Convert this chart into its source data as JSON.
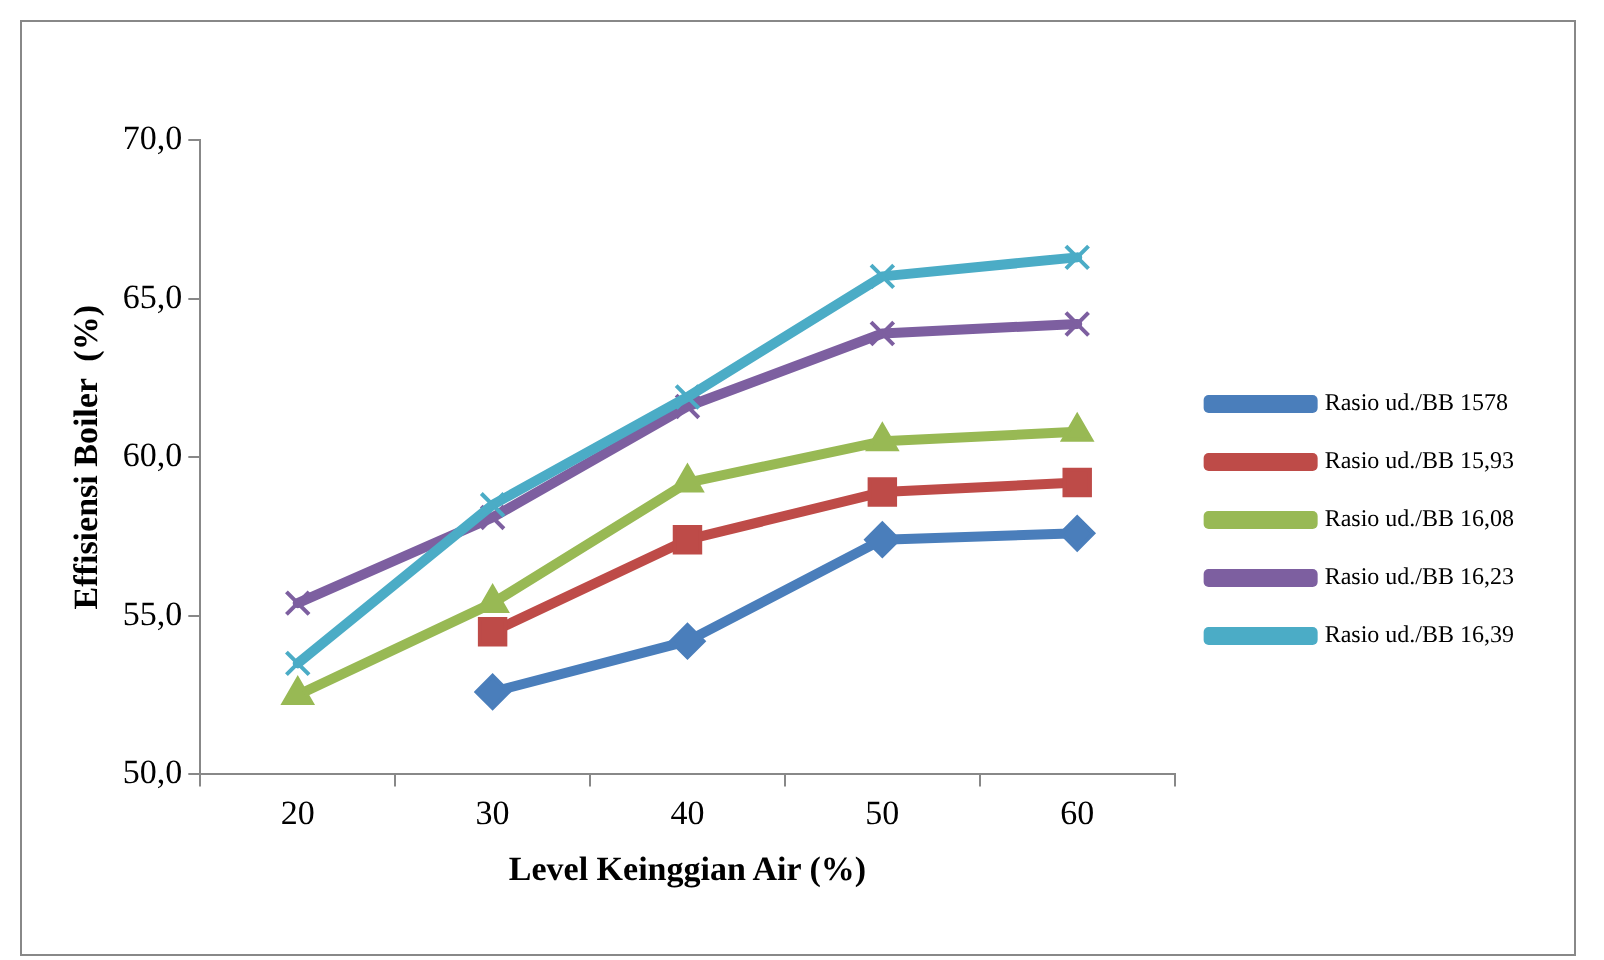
{
  "chart_data": {
    "type": "line",
    "xlabel": "Level Keinggian Air (%)",
    "ylabel": "Effisiensi Boiler  (%)",
    "categories": [
      "20",
      "30",
      "40",
      "50",
      "60"
    ],
    "ylim": [
      50,
      70
    ],
    "yticks": [
      {
        "value": 50,
        "label": "50,0"
      },
      {
        "value": 55,
        "label": "55,0"
      },
      {
        "value": 60,
        "label": "60,0"
      },
      {
        "value": 65,
        "label": "65,0"
      },
      {
        "value": 70,
        "label": "70,0"
      }
    ],
    "grid": false,
    "legend": "right",
    "series": [
      {
        "name": "Rasio ud./BB 1578",
        "color": "#4a7ebb",
        "marker": "diamond",
        "values": [
          null,
          52.6,
          54.2,
          57.4,
          57.6
        ]
      },
      {
        "name": "Rasio ud./BB 15,93",
        "color": "#be4b48",
        "marker": "square",
        "values": [
          null,
          54.5,
          57.4,
          58.9,
          59.2
        ]
      },
      {
        "name": "Rasio ud./BB 16,08",
        "color": "#98b954",
        "marker": "triangle",
        "values": [
          52.5,
          55.4,
          59.2,
          60.5,
          60.8
        ]
      },
      {
        "name": "Rasio ud./BB 16,23",
        "color": "#7d5fa0",
        "marker": "cross",
        "values": [
          55.4,
          58.1,
          61.6,
          63.9,
          64.2
        ]
      },
      {
        "name": "Rasio ud./BB 16,39",
        "color": "#4bacc6",
        "marker": "cross",
        "values": [
          53.5,
          58.5,
          61.9,
          65.7,
          66.3
        ]
      }
    ]
  }
}
